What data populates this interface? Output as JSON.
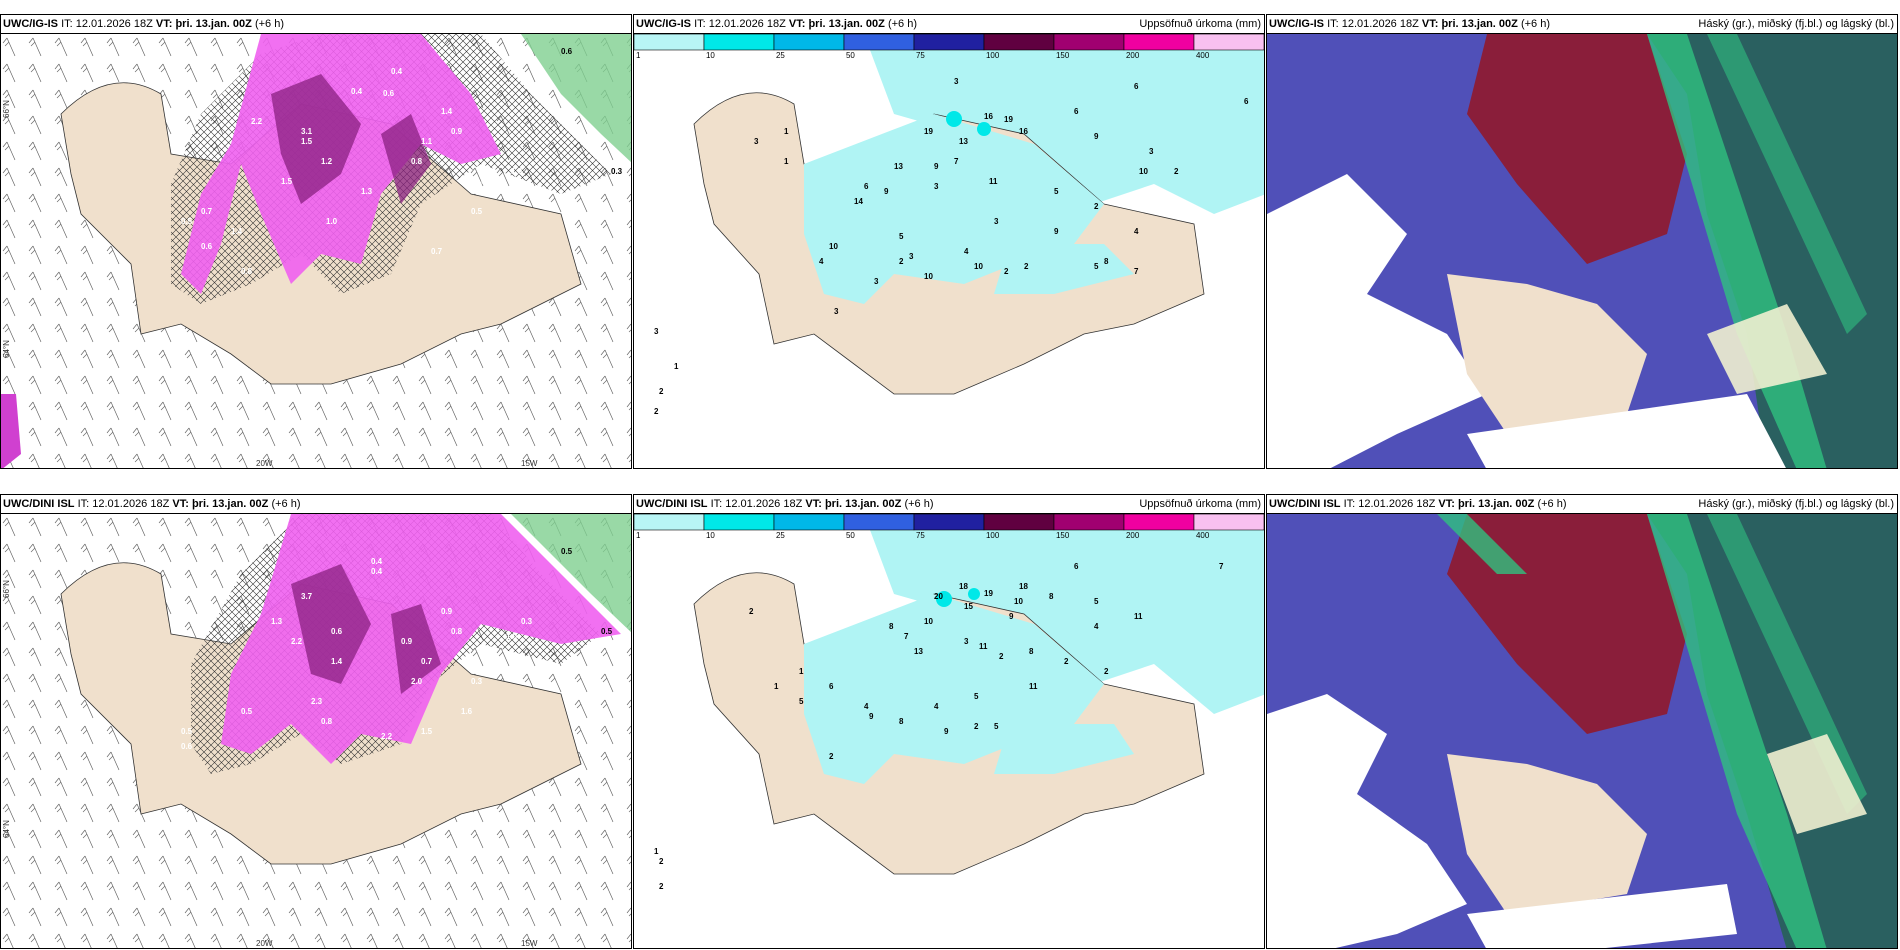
{
  "rows": [
    {
      "model": "UWC/IG-IS",
      "it_label": "IT:",
      "it_value": "12.01.2026 18Z",
      "vt_label": "VT:",
      "vt_value": "þri. 13.jan. 00Z",
      "lead": "(+6 h)"
    },
    {
      "model": "UWC/DINI ISL",
      "it_label": "IT:",
      "it_value": "12.01.2026 18Z",
      "vt_label": "VT:",
      "vt_value": "þri. 13.jan. 00Z",
      "lead": "(+6 h)"
    }
  ],
  "precip_title": "Uppsöfnuð úrkoma (mm)",
  "cloud_title": "Háský (gr.), miðský (fj.bl.) og lágský (bl.)",
  "lat_label": "66°N",
  "lat_label2": "64°N",
  "lon_label_1": "20W",
  "lon_label_2": "15W",
  "colorbar": {
    "ticks": [
      "1",
      "10",
      "25",
      "50",
      "75",
      "100",
      "150",
      "200",
      "400"
    ],
    "colors": [
      "#b8f5f5",
      "#00e8e8",
      "#00b8e8",
      "#3060e0",
      "#2020a0",
      "#600040",
      "#a00070",
      "#f000a0",
      "#f8c0f0"
    ]
  },
  "precip_top_values": [
    "3",
    "16",
    "19",
    "13",
    "19",
    "16",
    "6",
    "9",
    "6",
    "3",
    "13",
    "9",
    "7",
    "10",
    "2",
    "1",
    "11",
    "3",
    "5",
    "6",
    "14",
    "9",
    "2",
    "3",
    "10",
    "5",
    "3",
    "3",
    "5",
    "4",
    "2",
    "2",
    "10",
    "10",
    "9",
    "2",
    "4",
    "7",
    "8",
    "3",
    "3",
    "1",
    "2",
    "2",
    "4",
    "1",
    "3",
    "6"
  ],
  "precip_bottom_values": [
    "2",
    "6",
    "7",
    "18",
    "20",
    "15",
    "19",
    "18",
    "10",
    "8",
    "5",
    "8",
    "10",
    "9",
    "7",
    "13",
    "3",
    "11",
    "2",
    "8",
    "4",
    "2",
    "2",
    "5",
    "6",
    "11",
    "11",
    "9",
    "4",
    "5",
    "2",
    "1",
    "1",
    "5",
    "8",
    "4",
    "9",
    "2",
    "1",
    "2",
    "2"
  ],
  "snow_top_values": [
    "0.6",
    "0.6",
    "1.5",
    "1.4",
    "1.2",
    "3.1",
    "1.5",
    "0.5",
    "0.4",
    "1.0",
    "0.8",
    "1.3",
    "0.6",
    "1.4",
    "0.7",
    "0.5",
    "0.8",
    "0.7",
    "1.0",
    "0.4",
    "2.2",
    "1.1",
    "0.9",
    "0.5",
    "0.3"
  ],
  "snow_bottom_values": [
    "0.5",
    "0.6",
    "1.3",
    "3.7",
    "2.2",
    "2.0",
    "1.4",
    "0.6",
    "2.3",
    "0.5",
    "0.4",
    "1.0",
    "0.7",
    "0.9",
    "1.6",
    "0.8",
    "0.3",
    "2.2",
    "1.5",
    "0.5",
    "0.3",
    "0.4",
    "0.8",
    "0.9",
    "0.5"
  ],
  "accent_colors": {
    "land": "#f0e0cc",
    "snow_pink": "#f060f0",
    "snow_dark": "#8a2080",
    "green": "#80d090",
    "cyan": "#b0f4f4",
    "cloud_high": "#8a1e3a",
    "cloud_mid": "#5050b8",
    "cloud_low": "#2a6060"
  }
}
